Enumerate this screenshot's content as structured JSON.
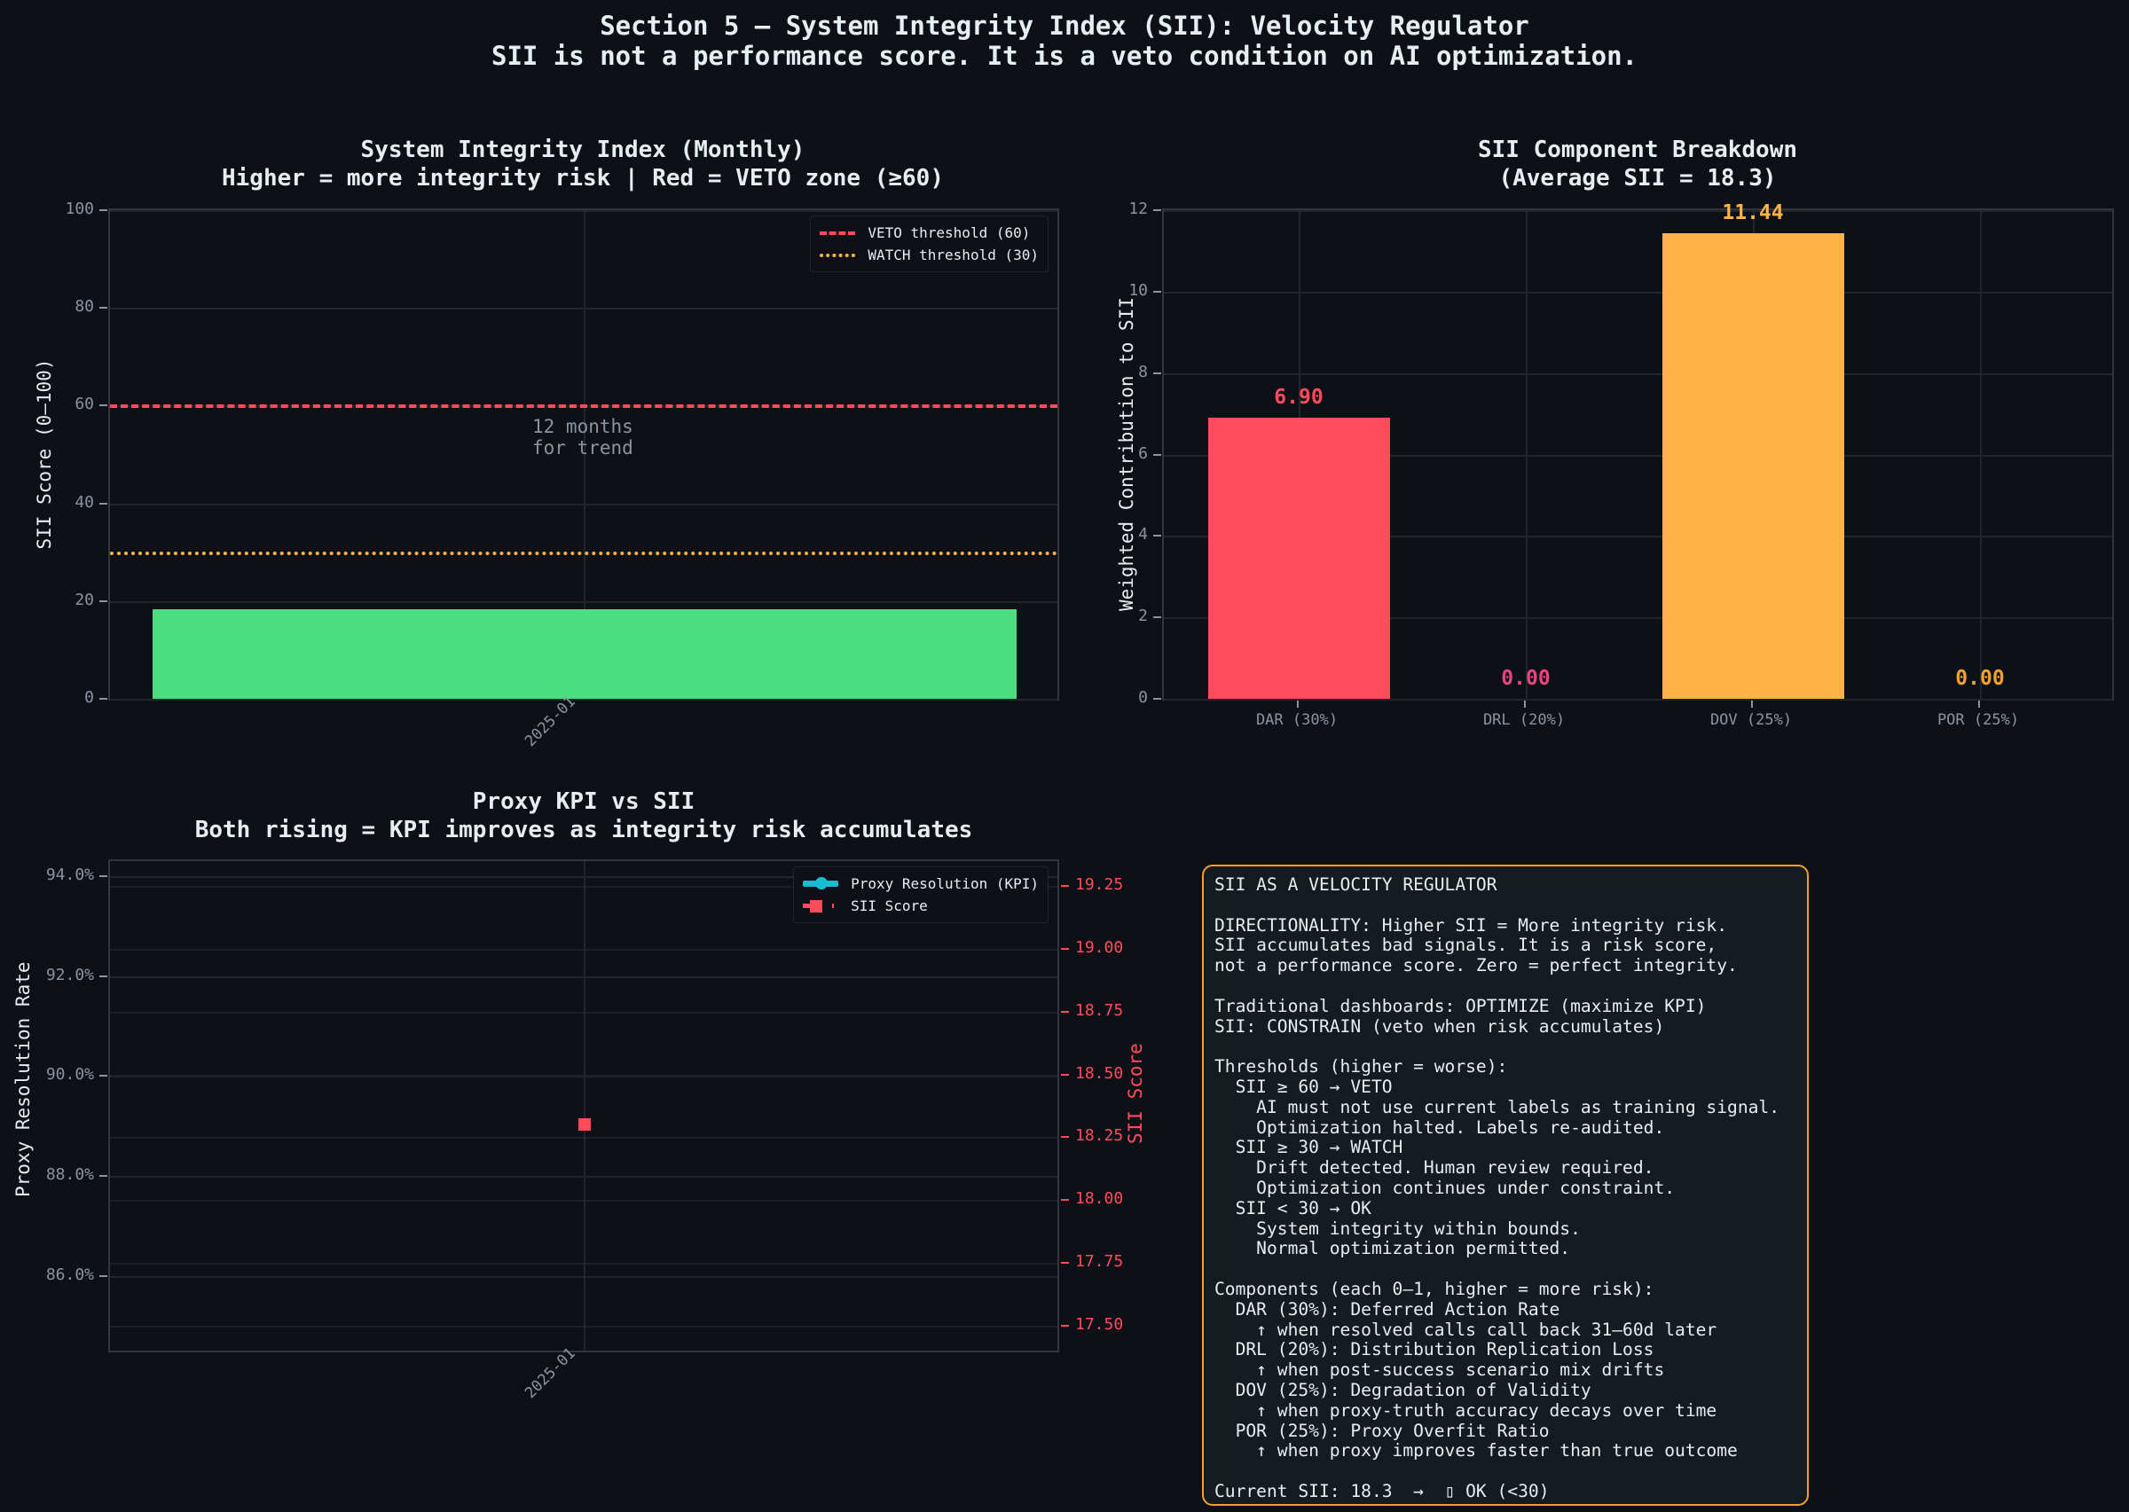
{
  "header": {
    "title": "Section 5 — System Integrity Index (SII): Velocity Regulator",
    "subtitle": "SII is not a performance score. It is a veto condition on AI optimization."
  },
  "colors": {
    "background": "#0d1117",
    "veto_red": "#ff4b5c",
    "watch_orange": "#ffb347",
    "ok_green": "#4ade80",
    "kpi_cyan": "#17becf",
    "box_border": "#f0a030",
    "por_orange": "#f0a030",
    "drl_pink": "#e8457c"
  },
  "chart_data": [
    {
      "id": "sii-monthly",
      "type": "bar",
      "title": "System Integrity Index (Monthly)",
      "subtitle": "Higher = more integrity risk | Red = VETO zone (≥60)",
      "xlabel": "",
      "ylabel": "SII Score (0–100)",
      "categories": [
        "2025-01"
      ],
      "values": [
        18.3
      ],
      "bar_color": "#4ade80",
      "ylim": [
        0,
        100
      ],
      "yticks": [
        "0",
        "20",
        "40",
        "60",
        "80",
        "100"
      ],
      "grid": true,
      "reference_lines": [
        {
          "label": "VETO threshold (60)",
          "value": 60,
          "style": "dashed",
          "color": "#ff4b5c"
        },
        {
          "label": "WATCH threshold (30)",
          "value": 30,
          "style": "dotted",
          "color": "#ffb347"
        }
      ],
      "annotation": {
        "line1": "12 months",
        "line2": "for trend"
      },
      "legend_position": "upper right"
    },
    {
      "id": "sii-components",
      "type": "bar",
      "title": "SII Component Breakdown",
      "subtitle": "(Average SII = 18.3)",
      "xlabel": "",
      "ylabel": "Weighted Contribution to SII",
      "categories": [
        "DAR (30%)",
        "DRL (20%)",
        "DOV (25%)",
        "POR (25%)"
      ],
      "values": [
        6.9,
        0.0,
        11.44,
        0.0
      ],
      "value_labels": [
        "6.90",
        "0.00",
        "11.44",
        "0.00"
      ],
      "colors": [
        "#ff4b5c",
        "#e8457c",
        "#ffb347",
        "#f0a030"
      ],
      "ylim": [
        0,
        12
      ],
      "yticks": [
        "0",
        "2",
        "4",
        "6",
        "8",
        "10",
        "12"
      ],
      "grid": true
    },
    {
      "id": "kpi-vs-sii",
      "type": "line",
      "title": "Proxy KPI vs SII",
      "subtitle": "Both rising = KPI improves as integrity risk accumulates",
      "xlabel": "",
      "ylabel": "Proxy Resolution Rate",
      "ylabel_right": "SII Score",
      "categories": [
        "2025-01"
      ],
      "series": [
        {
          "name": "Proxy Resolution (KPI)",
          "axis": "left",
          "values": [
            null
          ],
          "color": "#17becf",
          "marker": "circle"
        },
        {
          "name": "SII Score",
          "axis": "right",
          "values": [
            18.3
          ],
          "color": "#ff4b5c",
          "marker": "square"
        }
      ],
      "ylim_left": [
        84.5,
        94.3
      ],
      "yticks_left": [
        "86.0%",
        "88.0%",
        "90.0%",
        "92.0%",
        "94.0%"
      ],
      "ylim_right": [
        17.4,
        19.35
      ],
      "yticks_right": [
        "17.50",
        "17.75",
        "18.00",
        "18.25",
        "18.50",
        "18.75",
        "19.00",
        "19.25"
      ],
      "grid": true,
      "legend_position": "upper right"
    }
  ],
  "infobox": {
    "lines": [
      "SII AS A VELOCITY REGULATOR",
      "",
      "DIRECTIONALITY: Higher SII = More integrity risk.",
      "SII accumulates bad signals. It is a risk score,",
      "not a performance score. Zero = perfect integrity.",
      "",
      "Traditional dashboards: OPTIMIZE (maximize KPI)",
      "SII: CONSTRAIN (veto when risk accumulates)",
      "",
      "Thresholds (higher = worse):",
      "  SII ≥ 60 → VETO",
      "    AI must not use current labels as training signal.",
      "    Optimization halted. Labels re-audited.",
      "  SII ≥ 30 → WATCH",
      "    Drift detected. Human review required.",
      "    Optimization continues under constraint.",
      "  SII < 30 → OK",
      "    System integrity within bounds.",
      "    Normal optimization permitted.",
      "",
      "Components (each 0–1, higher = more risk):",
      "  DAR (30%): Deferred Action Rate",
      "    ↑ when resolved calls call back 31–60d later",
      "  DRL (20%): Distribution Replication Loss",
      "    ↑ when post-success scenario mix drifts",
      "  DOV (25%): Degradation of Validity",
      "    ↑ when proxy-truth accuracy decays over time",
      "  POR (25%): Proxy Overfit Ratio",
      "    ↑ when proxy improves faster than true outcome",
      "",
      "Current SII: 18.3  →  ▯ OK (<30)"
    ]
  }
}
